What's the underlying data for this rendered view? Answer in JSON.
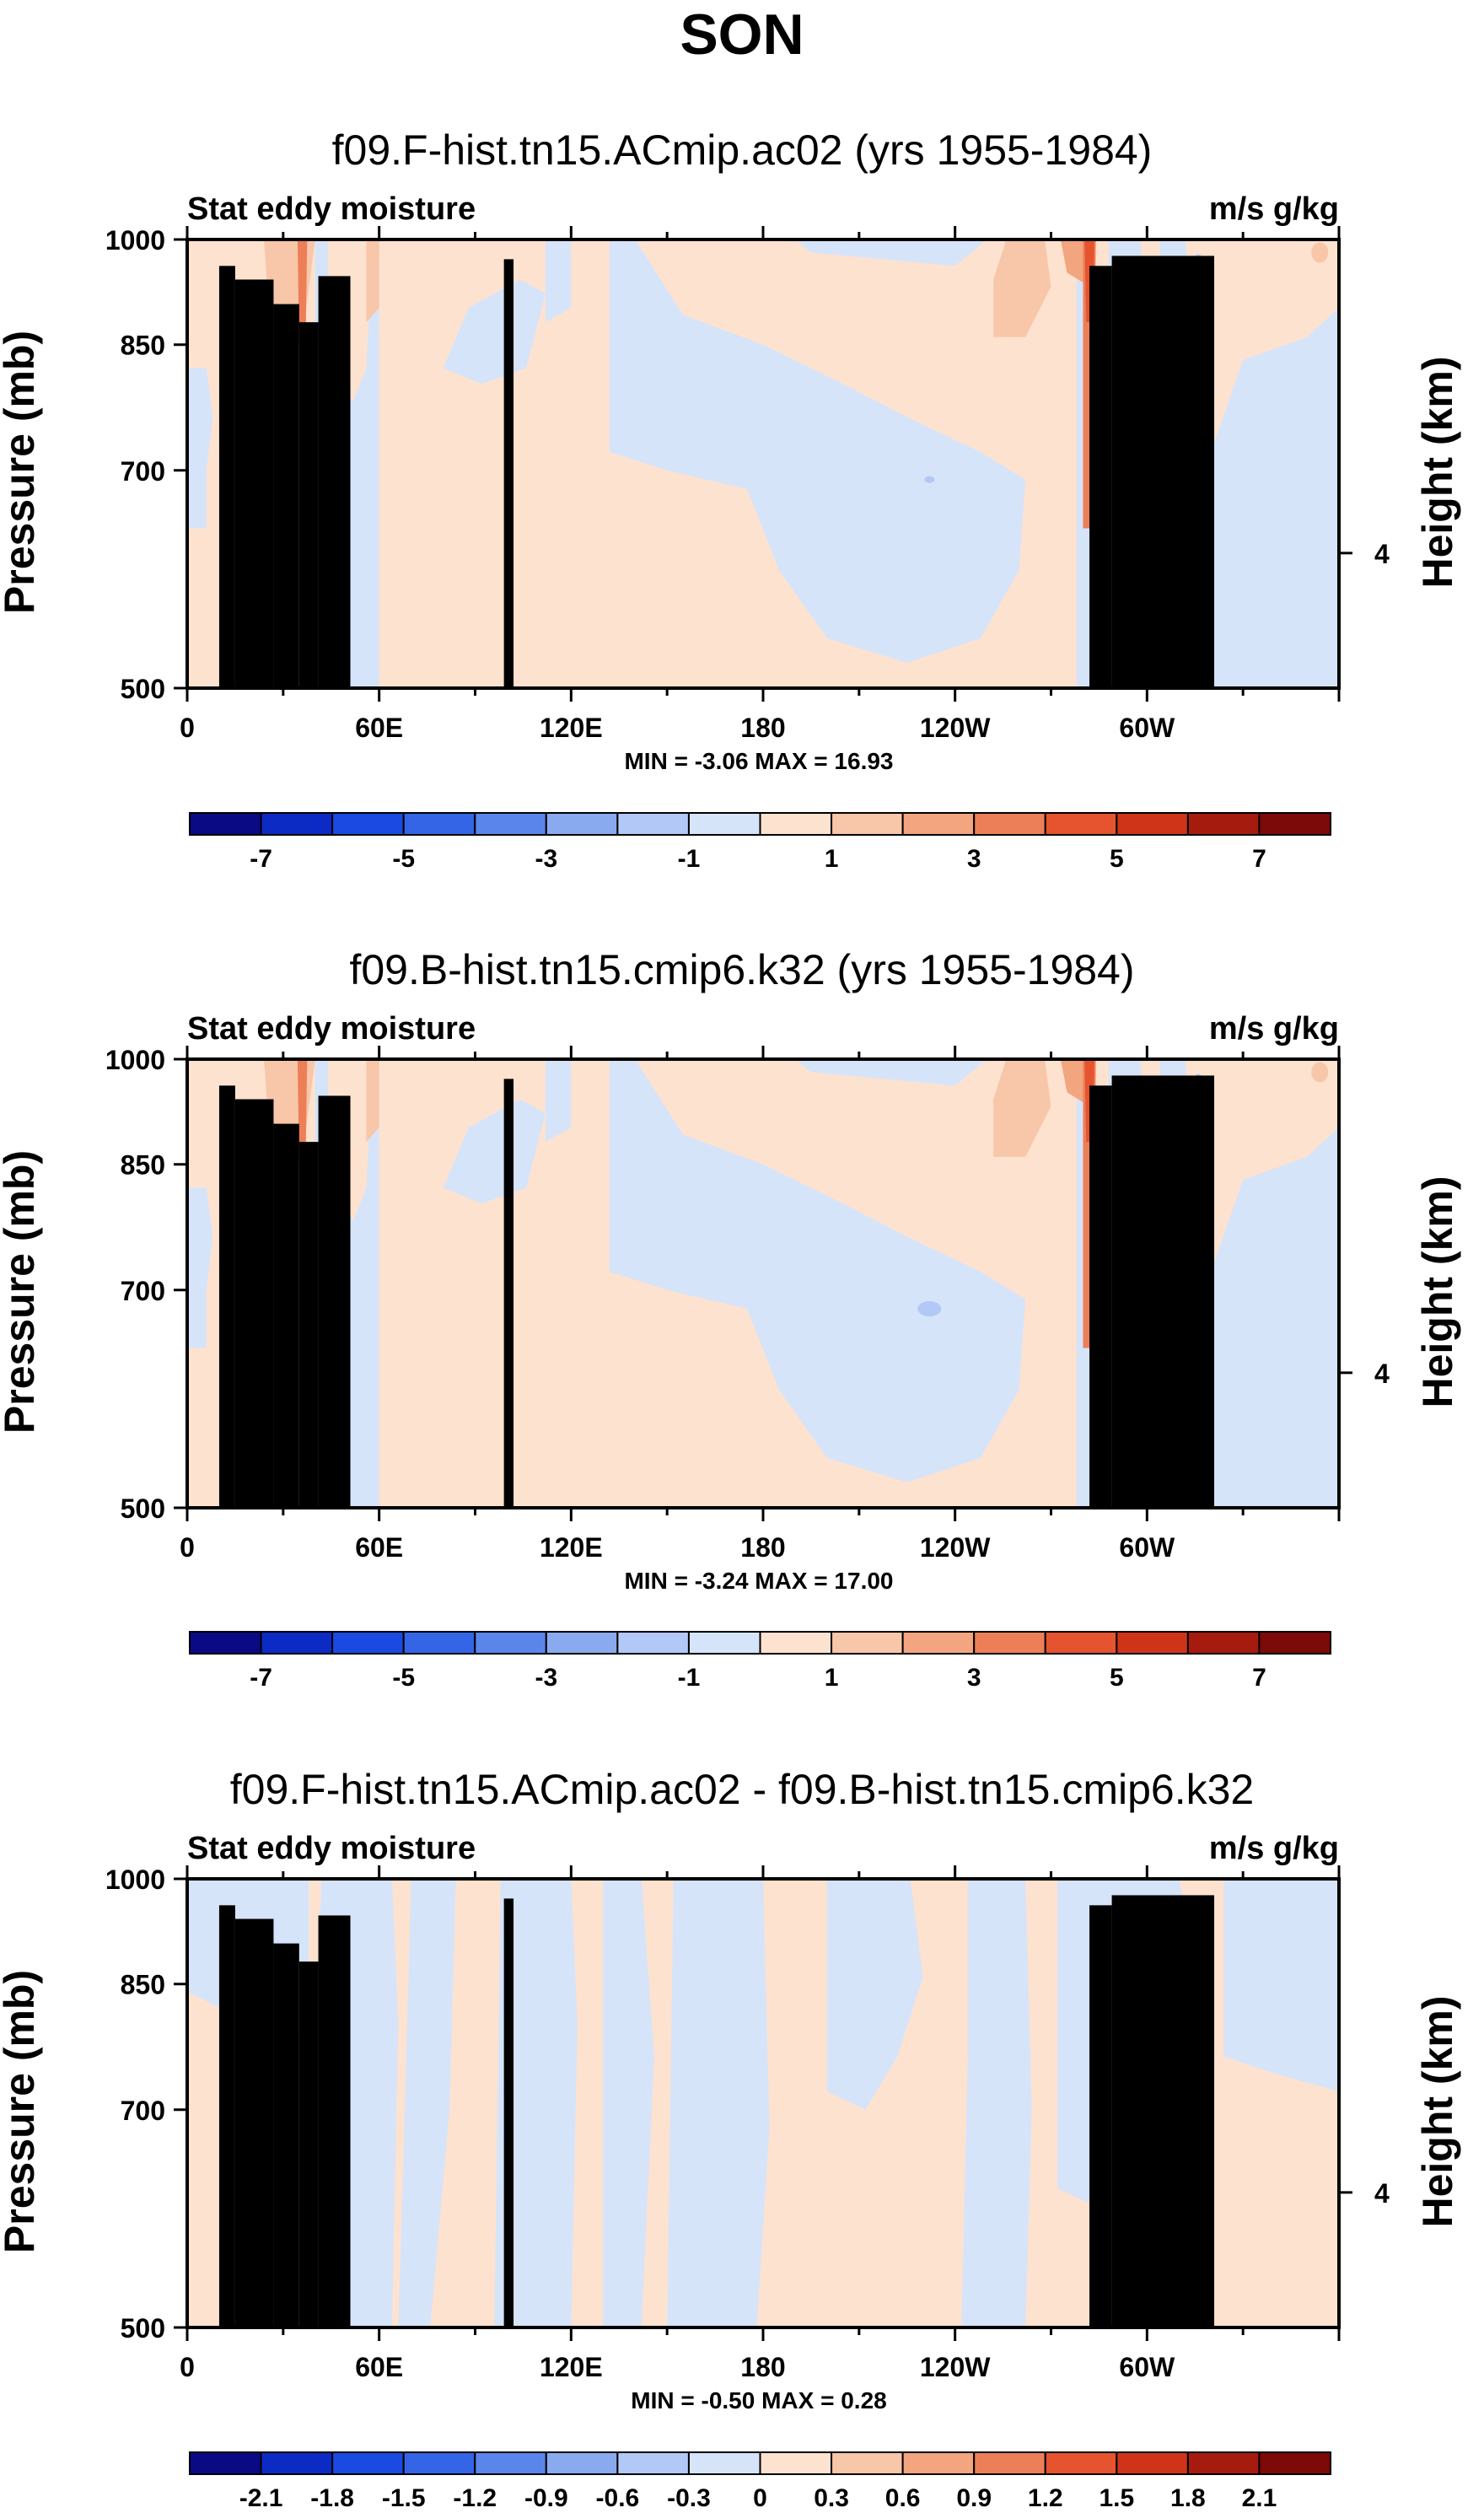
{
  "title": "SON",
  "colors": {
    "palette": [
      "#0a0a84",
      "#0b2bc4",
      "#1a4ae2",
      "#3365e6",
      "#5a86ec",
      "#8aaaf0",
      "#b2c8f6",
      "#d6e4fa",
      "#fde2cf",
      "#f8c6a8",
      "#f2a57f",
      "#ec7f57",
      "#e5532f",
      "#cf3419",
      "#a51c0f",
      "#7c0a08"
    ],
    "land": "#000000",
    "frame": "#000000"
  },
  "chart_data": [
    {
      "type": "contour",
      "title": "f09.F-hist.tn15.ACmip.ac02 (yrs 1955-1984)",
      "left_label": "Stat eddy moisture",
      "right_label": "m/s g/kg",
      "ylabel": "Pressure (mb)",
      "ylabel_right": "Height (km)",
      "yticks": [
        "500",
        "700",
        "850",
        "1000"
      ],
      "ytick_values": [
        500,
        700,
        850,
        1000
      ],
      "yticks_right": [
        "4"
      ],
      "ytick_right_values": [
        616
      ],
      "xticks": [
        "0",
        "60E",
        "120E",
        "180",
        "120W",
        "60W"
      ],
      "xtick_values": [
        0,
        60,
        120,
        180,
        240,
        300
      ],
      "xlim": [
        0,
        360
      ],
      "ylim": [
        1000,
        500
      ],
      "minmax": "MIN = -3.06  MAX = 16.93",
      "min": -3.06,
      "max": 16.93,
      "colorbar_labels": [
        "-7",
        "-5",
        "-3",
        "-1",
        "1",
        "3",
        "5",
        "7"
      ],
      "colorbar_levels": [
        -7,
        -6,
        -5,
        -4,
        -3,
        -2,
        -1,
        0,
        1,
        2,
        3,
        4,
        5,
        6,
        7
      ]
    },
    {
      "type": "contour",
      "title": "f09.B-hist.tn15.cmip6.k32 (yrs 1955-1984)",
      "left_label": "Stat eddy moisture",
      "right_label": "m/s g/kg",
      "ylabel": "Pressure (mb)",
      "ylabel_right": "Height (km)",
      "yticks": [
        "500",
        "700",
        "850",
        "1000"
      ],
      "ytick_values": [
        500,
        700,
        850,
        1000
      ],
      "yticks_right": [
        "4"
      ],
      "ytick_right_values": [
        616
      ],
      "xticks": [
        "0",
        "60E",
        "120E",
        "180",
        "120W",
        "60W"
      ],
      "xtick_values": [
        0,
        60,
        120,
        180,
        240,
        300
      ],
      "xlim": [
        0,
        360
      ],
      "ylim": [
        1000,
        500
      ],
      "minmax": "MIN = -3.24  MAX = 17.00",
      "min": -3.24,
      "max": 17.0,
      "colorbar_labels": [
        "-7",
        "-5",
        "-3",
        "-1",
        "1",
        "3",
        "5",
        "7"
      ],
      "colorbar_levels": [
        -7,
        -6,
        -5,
        -4,
        -3,
        -2,
        -1,
        0,
        1,
        2,
        3,
        4,
        5,
        6,
        7
      ]
    },
    {
      "type": "contour",
      "title": "f09.F-hist.tn15.ACmip.ac02 - f09.B-hist.tn15.cmip6.k32",
      "left_label": "Stat eddy moisture",
      "right_label": "m/s g/kg",
      "ylabel": "Pressure (mb)",
      "ylabel_right": "Height (km)",
      "yticks": [
        "500",
        "700",
        "850",
        "1000"
      ],
      "ytick_values": [
        500,
        700,
        850,
        1000
      ],
      "yticks_right": [
        "4"
      ],
      "ytick_right_values": [
        616
      ],
      "xticks": [
        "0",
        "60E",
        "120E",
        "180",
        "120W",
        "60W"
      ],
      "xtick_values": [
        0,
        60,
        120,
        180,
        240,
        300
      ],
      "xlim": [
        0,
        360
      ],
      "ylim": [
        1000,
        500
      ],
      "minmax": "MIN = -0.50  MAX =  0.28",
      "min": -0.5,
      "max": 0.28,
      "colorbar_labels": [
        "-2.1",
        "-1.8",
        "-1.5",
        "-1.2",
        "-0.9",
        "-0.6",
        "-0.3",
        "0",
        "0.3",
        "0.6",
        "0.9",
        "1.2",
        "1.5",
        "1.8",
        "2.1"
      ],
      "colorbar_levels": [
        -2.1,
        -1.8,
        -1.5,
        -1.2,
        -0.9,
        -0.6,
        -0.3,
        0,
        0.3,
        0.6,
        0.9,
        1.2,
        1.5,
        1.8,
        2.1
      ]
    }
  ]
}
